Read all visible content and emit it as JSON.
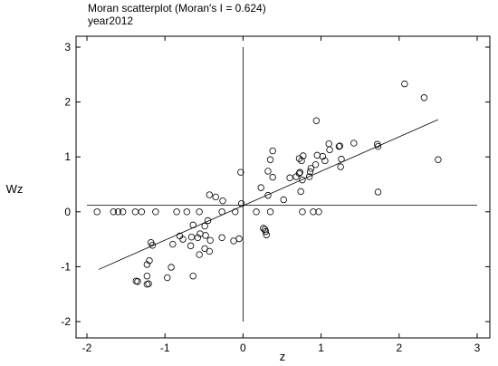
{
  "chart_data": {
    "type": "scatter",
    "title": "Moran scatterplot (Moran's I = 0.624)",
    "subtitle": "year2012",
    "xlabel": "z",
    "ylabel": "Wz",
    "xlim": [
      -2,
      3
    ],
    "ylim": [
      -2,
      3
    ],
    "x_ticks": [
      -2,
      -1,
      0,
      1,
      2,
      3
    ],
    "y_ticks": [
      -2,
      -1,
      0,
      1,
      2,
      3
    ],
    "grid": false,
    "reference_lines": {
      "vertical_x": 0,
      "horizontal_y": 0.12
    },
    "fit_line": {
      "x": [
        -1.85,
        2.5
      ],
      "y": [
        -1.05,
        1.68
      ]
    },
    "points": [
      {
        "x": 2.07,
        "y": 2.33
      },
      {
        "x": 2.32,
        "y": 2.08
      },
      {
        "x": 2.5,
        "y": 0.95
      },
      {
        "x": 1.73,
        "y": 0.36
      },
      {
        "x": 1.72,
        "y": 1.23
      },
      {
        "x": 1.73,
        "y": 1.19
      },
      {
        "x": 0.94,
        "y": 1.66
      },
      {
        "x": 1.42,
        "y": 1.25
      },
      {
        "x": 1.23,
        "y": 1.19
      },
      {
        "x": 1.1,
        "y": 1.24
      },
      {
        "x": 1.24,
        "y": 1.2
      },
      {
        "x": 1.11,
        "y": 1.13
      },
      {
        "x": 1.02,
        "y": 1.01
      },
      {
        "x": 0.95,
        "y": 1.03
      },
      {
        "x": 1.05,
        "y": 0.93
      },
      {
        "x": 0.93,
        "y": 0.86
      },
      {
        "x": 1.26,
        "y": 0.96
      },
      {
        "x": 1.25,
        "y": 0.82
      },
      {
        "x": 0.87,
        "y": 0.79
      },
      {
        "x": 0.86,
        "y": 0.73
      },
      {
        "x": 0.85,
        "y": 0.64
      },
      {
        "x": 0.76,
        "y": 0.58
      },
      {
        "x": 0.68,
        "y": 0.64
      },
      {
        "x": 0.6,
        "y": 0.62
      },
      {
        "x": 0.75,
        "y": 0.93
      },
      {
        "x": 0.77,
        "y": 1.02
      },
      {
        "x": 0.72,
        "y": 0.97
      },
      {
        "x": 0.73,
        "y": 0.72
      },
      {
        "x": 0.72,
        "y": 0.7
      },
      {
        "x": 0.38,
        "y": 1.11
      },
      {
        "x": 0.35,
        "y": 0.95
      },
      {
        "x": 0.32,
        "y": 0.74
      },
      {
        "x": 0.38,
        "y": 0.63
      },
      {
        "x": 0.52,
        "y": 0.22
      },
      {
        "x": 0.74,
        "y": 0.37
      },
      {
        "x": 0.23,
        "y": 0.44
      },
      {
        "x": 0.32,
        "y": 0.3
      },
      {
        "x": -0.03,
        "y": 0.72
      },
      {
        "x": 0.76,
        "y": 0.0
      },
      {
        "x": 0.9,
        "y": 0.0
      },
      {
        "x": 0.97,
        "y": 0.0
      },
      {
        "x": 0.17,
        "y": 0.0
      },
      {
        "x": 0.35,
        "y": 0.0
      },
      {
        "x": 0.28,
        "y": -0.32
      },
      {
        "x": 0.26,
        "y": -0.3
      },
      {
        "x": 0.29,
        "y": -0.36
      },
      {
        "x": 0.3,
        "y": -0.42
      },
      {
        "x": -0.02,
        "y": 0.15
      },
      {
        "x": -0.05,
        "y": -0.49
      },
      {
        "x": -0.12,
        "y": -0.53
      },
      {
        "x": -0.35,
        "y": 0.27
      },
      {
        "x": -0.43,
        "y": 0.31
      },
      {
        "x": -0.26,
        "y": 0.2
      },
      {
        "x": -0.1,
        "y": 0.0
      },
      {
        "x": -0.27,
        "y": 0.0
      },
      {
        "x": -0.56,
        "y": 0.0
      },
      {
        "x": -0.72,
        "y": 0.0
      },
      {
        "x": -0.85,
        "y": 0.0
      },
      {
        "x": -1.12,
        "y": 0.0
      },
      {
        "x": -1.3,
        "y": 0.0
      },
      {
        "x": -1.38,
        "y": 0.0
      },
      {
        "x": -1.54,
        "y": 0.0
      },
      {
        "x": -1.6,
        "y": 0.0
      },
      {
        "x": -1.66,
        "y": 0.0
      },
      {
        "x": -1.87,
        "y": 0.0
      },
      {
        "x": -0.45,
        "y": -0.16
      },
      {
        "x": -0.49,
        "y": -0.26
      },
      {
        "x": -0.55,
        "y": -0.4
      },
      {
        "x": -0.58,
        "y": -0.47
      },
      {
        "x": -0.48,
        "y": -0.43
      },
      {
        "x": -0.42,
        "y": -0.52
      },
      {
        "x": -0.27,
        "y": -0.47
      },
      {
        "x": -0.49,
        "y": -0.67
      },
      {
        "x": -0.43,
        "y": -0.72
      },
      {
        "x": -0.56,
        "y": -0.78
      },
      {
        "x": -0.66,
        "y": -0.46
      },
      {
        "x": -0.64,
        "y": -0.24
      },
      {
        "x": -0.81,
        "y": -0.44
      },
      {
        "x": -0.77,
        "y": -0.5
      },
      {
        "x": -0.9,
        "y": -0.59
      },
      {
        "x": -0.67,
        "y": -0.62
      },
      {
        "x": -0.92,
        "y": -1.01
      },
      {
        "x": -0.64,
        "y": -1.17
      },
      {
        "x": -0.97,
        "y": -1.2
      },
      {
        "x": -1.18,
        "y": -0.56
      },
      {
        "x": -1.16,
        "y": -0.61
      },
      {
        "x": -1.2,
        "y": -0.89
      },
      {
        "x": -1.23,
        "y": -0.96
      },
      {
        "x": -1.23,
        "y": -1.17
      },
      {
        "x": -1.37,
        "y": -1.26
      },
      {
        "x": -1.35,
        "y": -1.27
      },
      {
        "x": -1.23,
        "y": -1.32
      },
      {
        "x": -1.21,
        "y": -1.31
      }
    ]
  }
}
